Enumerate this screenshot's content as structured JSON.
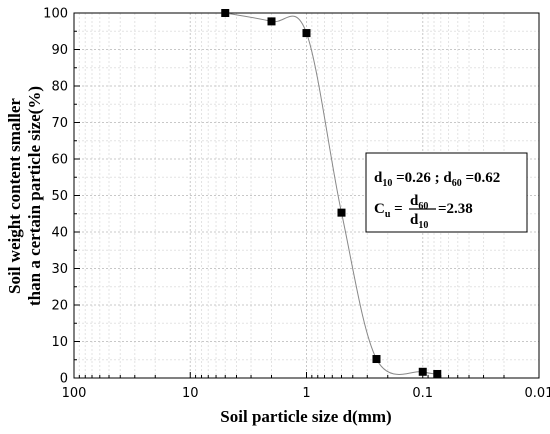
{
  "chart_data": {
    "type": "line",
    "x_scale": "log",
    "x_reversed": true,
    "xlim": [
      100,
      0.01
    ],
    "ylim": [
      0,
      100
    ],
    "xlabel": "Soil particle size d(mm)",
    "ylabel_line1": "Soil weight content smaller",
    "ylabel_line2": "than a certain particle size(%)",
    "x_ticks": [
      100,
      10,
      1,
      0.1,
      0.01
    ],
    "x_tick_labels": [
      "100",
      "10",
      "1",
      "0.1",
      "0.01"
    ],
    "y_ticks": [
      0,
      10,
      20,
      30,
      40,
      50,
      60,
      70,
      80,
      90,
      100
    ],
    "y_tick_labels": [
      "0",
      "10",
      "20",
      "30",
      "40",
      "50",
      "60",
      "70",
      "80",
      "90",
      "100"
    ],
    "grid": true,
    "series": [
      {
        "x": [
          5,
          2,
          1,
          0.5,
          0.25,
          0.1,
          0.075
        ],
        "y": [
          100,
          97.7,
          94.5,
          45.3,
          5.2,
          1.7,
          1.1
        ],
        "line_color": "#888888",
        "marker_color": "#000000"
      }
    ],
    "annotation": {
      "line1": {
        "d": "d",
        "sub10": "10",
        "text1": " =0.26 ; ",
        "d2": "d",
        "sub60": "60",
        "text2": " =0.62"
      },
      "line2": {
        "cu": "C",
        "cu_sub": "u",
        "eq": " = ",
        "num": "d",
        "num_sub": "60",
        "den": "d",
        "den_sub": "10",
        "result": "=2.38"
      }
    }
  }
}
